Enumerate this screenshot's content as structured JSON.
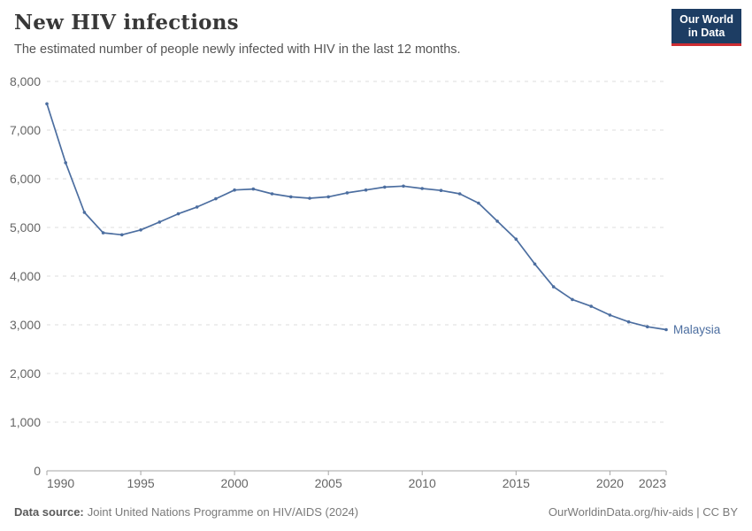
{
  "header": {
    "title": "New HIV infections",
    "subtitle": "The estimated number of people newly infected with HIV in the last 12 months.",
    "logo": {
      "line1": "Our World",
      "line2": "in Data",
      "bg_color": "#1d3d63",
      "accent_color": "#cd2d32"
    }
  },
  "chart_data": {
    "type": "line",
    "title": "New HIV infections",
    "entity_label": "Malaysia",
    "x": [
      1990,
      1991,
      1992,
      1993,
      1994,
      1995,
      1996,
      1997,
      1998,
      1999,
      2000,
      2001,
      2002,
      2003,
      2004,
      2005,
      2006,
      2007,
      2008,
      2009,
      2010,
      2011,
      2012,
      2013,
      2014,
      2015,
      2016,
      2017,
      2018,
      2019,
      2020,
      2021,
      2022,
      2023
    ],
    "series": [
      {
        "name": "Malaysia",
        "values": [
          7540,
          6330,
          5310,
          4890,
          4850,
          4950,
          5110,
          5280,
          5420,
          5590,
          5770,
          5790,
          5690,
          5630,
          5600,
          5630,
          5710,
          5770,
          5830,
          5850,
          5800,
          5760,
          5690,
          5500,
          5130,
          4760,
          4250,
          3780,
          3520,
          3380,
          3200,
          3060,
          2960,
          2900
        ]
      }
    ],
    "xlabel": "",
    "ylabel": "",
    "ylim": [
      0,
      8000
    ],
    "y_ticks": [
      0,
      1000,
      2000,
      3000,
      4000,
      5000,
      6000,
      7000,
      8000
    ],
    "x_ticks": [
      1990,
      1995,
      2000,
      2005,
      2010,
      2015,
      2020,
      2023
    ],
    "grid": "dashed-horizontal",
    "legend_position": "end-of-line",
    "line_color": "#4c6ea0"
  },
  "footer": {
    "source_label": "Data source:",
    "source_text": "Joint United Nations Programme on HIV/AIDS (2024)",
    "attribution": "OurWorldinData.org/hiv-aids | CC BY"
  }
}
